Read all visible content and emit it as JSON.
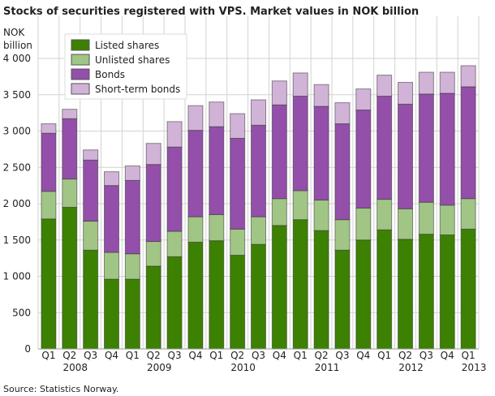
{
  "chart_data": {
    "type": "bar",
    "stacked": true,
    "title": "Stocks of securities registered with VPS. Market values in NOK billion",
    "ylabel": [
      "NOK",
      "billion"
    ],
    "xlabel": "",
    "ylim": [
      0,
      4000
    ],
    "yticks": [
      0,
      500,
      1000,
      1500,
      2000,
      2500,
      3000,
      3500,
      4000
    ],
    "ytick_labels": [
      "0",
      "500",
      "1 000",
      "1 500",
      "2 000",
      "2 500",
      "3 000",
      "3 500",
      "4 000"
    ],
    "grid": true,
    "legend_placement": "top-left",
    "categories": [
      "Q1",
      "Q2",
      "Q3",
      "Q4",
      "Q1",
      "Q2",
      "Q3",
      "Q4",
      "Q1",
      "Q2",
      "Q3",
      "Q4",
      "Q1",
      "Q2",
      "Q3",
      "Q4",
      "Q1",
      "Q2",
      "Q3",
      "Q4",
      "Q1"
    ],
    "years": [
      {
        "label": "2008",
        "start": 0
      },
      {
        "label": "2009",
        "start": 4
      },
      {
        "label": "2010",
        "start": 8
      },
      {
        "label": "2011",
        "start": 12
      },
      {
        "label": "2012",
        "start": 16
      },
      {
        "label": "2013",
        "start": 20
      }
    ],
    "series": [
      {
        "name": "Listed shares",
        "color": "#3d8102",
        "values": [
          1790,
          1950,
          1360,
          960,
          960,
          1140,
          1270,
          1470,
          1490,
          1290,
          1440,
          1700,
          1780,
          1630,
          1360,
          1500,
          1640,
          1510,
          1580,
          1570,
          1650
        ]
      },
      {
        "name": "Unlisted shares",
        "color": "#a0c585",
        "values": [
          380,
          390,
          400,
          370,
          350,
          340,
          350,
          350,
          360,
          360,
          380,
          370,
          400,
          420,
          420,
          440,
          420,
          420,
          440,
          410,
          420
        ]
      },
      {
        "name": "Bonds",
        "color": "#934fa9",
        "values": [
          800,
          830,
          840,
          920,
          1010,
          1060,
          1160,
          1190,
          1210,
          1250,
          1260,
          1290,
          1300,
          1290,
          1320,
          1350,
          1420,
          1440,
          1490,
          1540,
          1540
        ]
      },
      {
        "name": "Short-term bonds",
        "color": "#d1b3d8",
        "values": [
          130,
          130,
          140,
          190,
          200,
          290,
          350,
          340,
          340,
          340,
          350,
          330,
          320,
          300,
          290,
          290,
          290,
          300,
          300,
          290,
          290
        ]
      }
    ],
    "source": "Source: Statistics Norway."
  }
}
